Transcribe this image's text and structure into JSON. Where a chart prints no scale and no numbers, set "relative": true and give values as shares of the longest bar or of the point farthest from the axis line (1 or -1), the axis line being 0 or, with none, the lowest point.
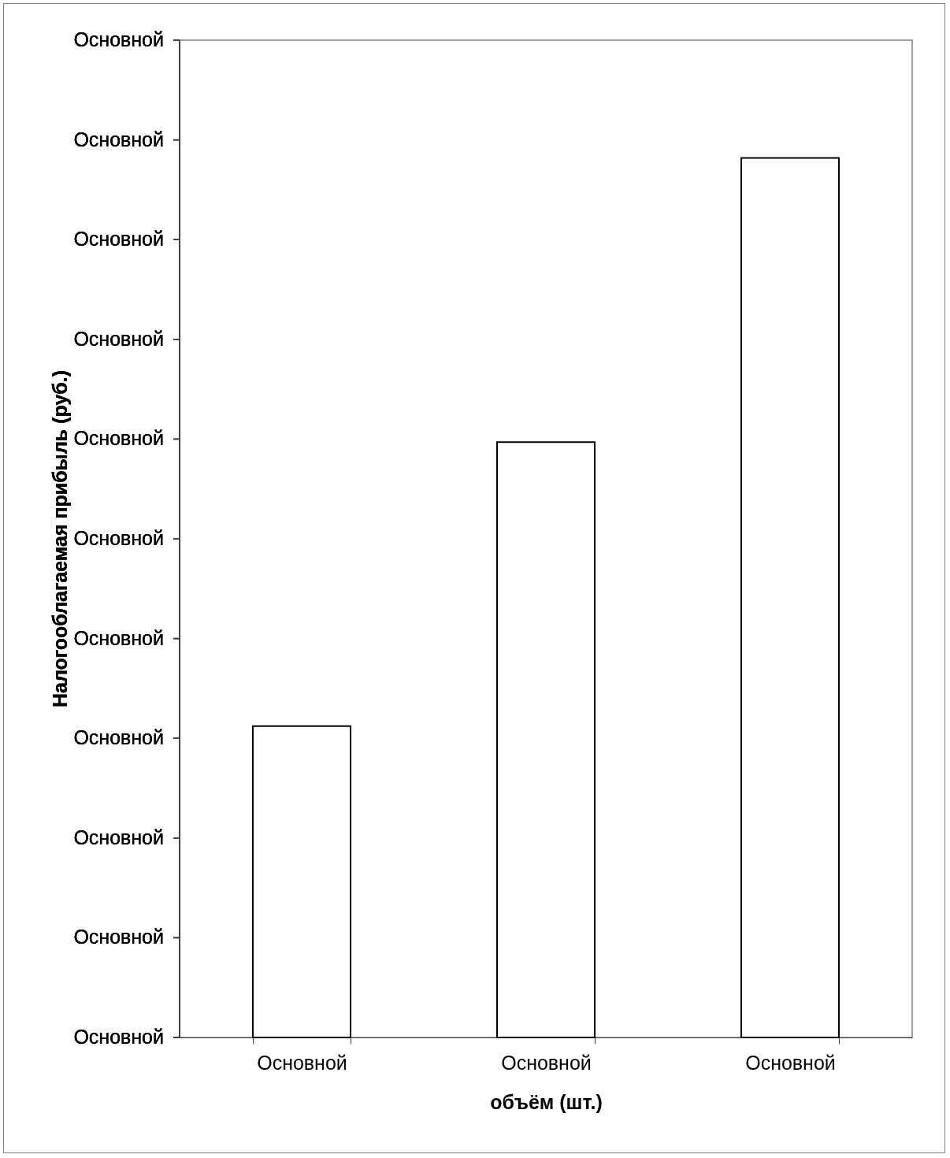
{
  "chart_data": {
    "type": "bar",
    "xlabel": "объём (шт.)",
    "categories": [
      "Основной",
      "Основной",
      "Основной"
    ],
    "values": [
      0.354,
      0.677,
      1
    ],
    "color": "#ffffff",
    "relative": true,
    "annotations": [
      "Налогооблагаемая прибыль (руб.)",
      "Основной",
      "Основной",
      "Основной",
      "Основной",
      "Основной",
      "Основной",
      "Основной",
      "Основной",
      "Основной",
      "Основной",
      "Основной"
    ]
  }
}
